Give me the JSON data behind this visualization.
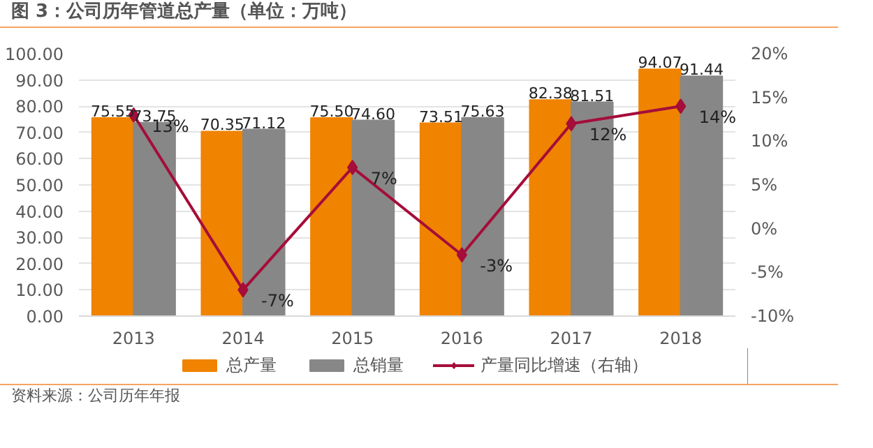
{
  "chart_data": {
    "type": "bar",
    "title": "图 3：公司历年管道总产量（单位：万吨）",
    "categories": [
      "2013",
      "2014",
      "2015",
      "2016",
      "2017",
      "2018"
    ],
    "series": [
      {
        "name": "总产量",
        "color": "#f08300",
        "value_labels": [
          "75.55",
          "70.35",
          "75.50",
          "73.51",
          "82.38",
          "94.07"
        ],
        "values": [
          75.55,
          70.35,
          75.5,
          73.51,
          82.38,
          94.07
        ]
      },
      {
        "name": "总销量",
        "color": "#878787",
        "value_labels": [
          "73.75",
          "71.12",
          "74.60",
          "75.63",
          "81.51",
          "91.44"
        ],
        "values": [
          73.75,
          71.12,
          74.6,
          75.63,
          81.51,
          91.44
        ]
      },
      {
        "name": "产量同比增速（右轴）",
        "type": "line",
        "axis": "y2",
        "color": "#a50d3a",
        "marker": "diamond",
        "value_labels": [
          "13%",
          "-7%",
          "7%",
          "-3%",
          "12%",
          "14%"
        ],
        "values": [
          13,
          -7,
          7,
          -3,
          12,
          14
        ]
      }
    ],
    "ylim": [
      0,
      100
    ],
    "yticks": [
      {
        "value": 0,
        "label": "0.00"
      },
      {
        "value": 10,
        "label": "10.00"
      },
      {
        "value": 20,
        "label": "20.00"
      },
      {
        "value": 30,
        "label": "30.00"
      },
      {
        "value": 40,
        "label": "40.00"
      },
      {
        "value": 50,
        "label": "50.00"
      },
      {
        "value": 60,
        "label": "60.00"
      },
      {
        "value": 70,
        "label": "70.00"
      },
      {
        "value": 80,
        "label": "80.00"
      },
      {
        "value": 90,
        "label": "90.00"
      },
      {
        "value": 100,
        "label": "100.00"
      }
    ],
    "y2lim": [
      -10,
      20
    ],
    "y2ticks": [
      {
        "value": -10,
        "label": "-10%"
      },
      {
        "value": -5,
        "label": "-5%"
      },
      {
        "value": 0,
        "label": "0%"
      },
      {
        "value": 5,
        "label": "5%"
      },
      {
        "value": 10,
        "label": "10%"
      },
      {
        "value": 15,
        "label": "15%"
      },
      {
        "value": 20,
        "label": "20%"
      }
    ],
    "grid": "y",
    "legend": "bottom",
    "annotations": [
      "资料来源：公司历年年报"
    ]
  }
}
